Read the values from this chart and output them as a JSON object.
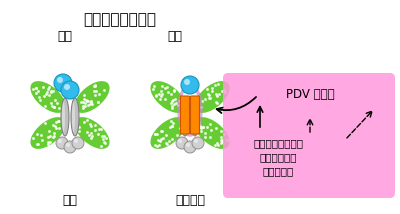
{
  "title": "葉緑体分裂の頻度",
  "label_left": "一定",
  "label_right": "可変",
  "label_algae": "緑藻",
  "label_land": "陸上植物",
  "pdv_box_text": "PDV の発現",
  "cytokinin_text": "サイトカイニンに\nよる細胞分化\nプログラム",
  "green_color": "#66cc33",
  "green_dark": "#44aa11",
  "green_dot": "#ccffaa",
  "cyan_color": "#33bbee",
  "cyan_dark": "#1199bb",
  "orange_color": "#ff8800",
  "orange_dark": "#cc5500",
  "gray_bar_light": "#c0c0c0",
  "gray_bar_dark": "#808080",
  "gray_ball_light": "#d0d0d0",
  "gray_ball_dark": "#909090",
  "pink_color": "#ff99dd",
  "purple_ring": "#cc88cc",
  "bg": "#ffffff",
  "fig_w": 4.0,
  "fig_h": 2.14,
  "dpi": 100
}
